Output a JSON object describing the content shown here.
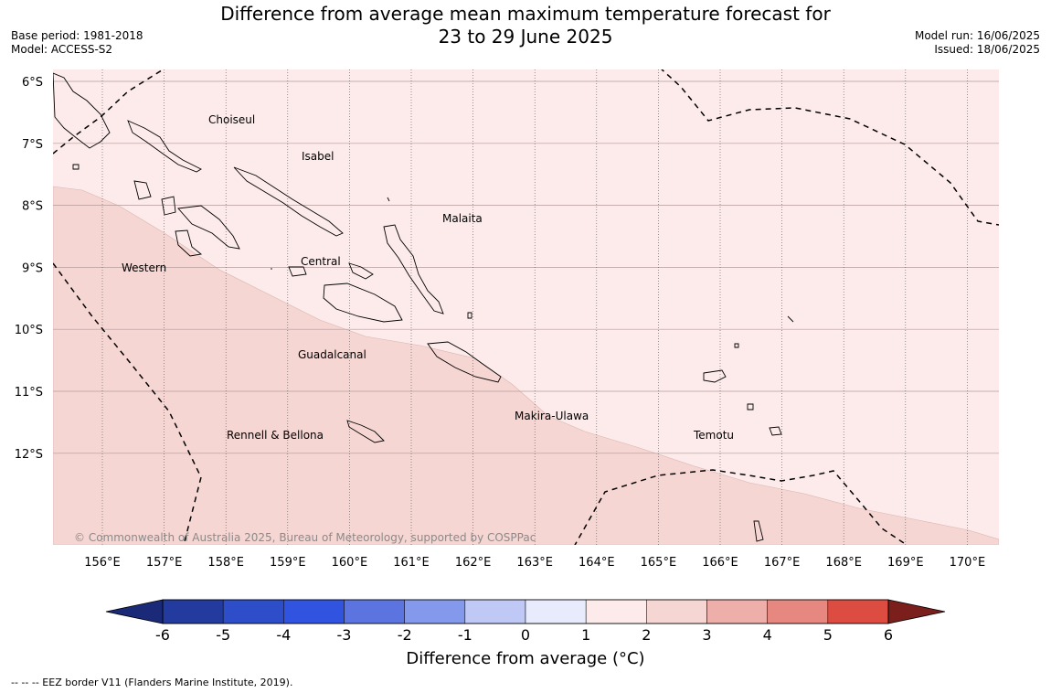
{
  "title": {
    "line1": "Difference from average mean maximum temperature forecast for",
    "line2": "23 to 29 June 2025"
  },
  "meta": {
    "base_period": "Base period: 1981-2018",
    "model": "Model: ACCESS-S2",
    "model_run": "Model run: 16/06/2025",
    "issued": "Issued: 18/06/2025"
  },
  "map": {
    "lat_ticks": [
      "6°S",
      "7°S",
      "8°S",
      "9°S",
      "10°S",
      "11°S",
      "12°S"
    ],
    "lon_ticks": [
      "156°E",
      "157°E",
      "158°E",
      "159°E",
      "160°E",
      "161°E",
      "162°E",
      "163°E",
      "164°E",
      "165°E",
      "166°E",
      "167°E",
      "168°E",
      "169°E",
      "170°E"
    ],
    "places": [
      {
        "name": "Choiseul"
      },
      {
        "name": "Isabel"
      },
      {
        "name": "Malaita"
      },
      {
        "name": "Central"
      },
      {
        "name": "Western"
      },
      {
        "name": "Guadalcanal"
      },
      {
        "name": "Makira-Ulawa"
      },
      {
        "name": "Temotu"
      },
      {
        "name": "Rennell & Bellona"
      }
    ],
    "copyright": "© Commonwealth of Australia 2025, Bureau of Meteorology, supported by COSPPac",
    "fill_colors": {
      "band_0_1": "#fcebea",
      "band_1_2": "#f6d6d3"
    }
  },
  "colorbar": {
    "ticks": [
      "-6",
      "-5",
      "-4",
      "-3",
      "-2",
      "-1",
      "0",
      "1",
      "2",
      "3",
      "4",
      "5",
      "6"
    ],
    "colors": [
      "#233b9e",
      "#2d4ec8",
      "#3053e0",
      "#5b74e0",
      "#8499ec",
      "#c0c9f5",
      "#e8ebfb",
      "#fcebea",
      "#f6d6d3",
      "#eeaeaa",
      "#e68880",
      "#dd4c40",
      "#b02a25"
    ],
    "under_color": "#1a2a78",
    "over_color": "#7a1f1c",
    "label": "Difference from average (°C)"
  },
  "footnote": "--  --  -- EEZ border V11 (Flanders Marine Institute, 2019)."
}
